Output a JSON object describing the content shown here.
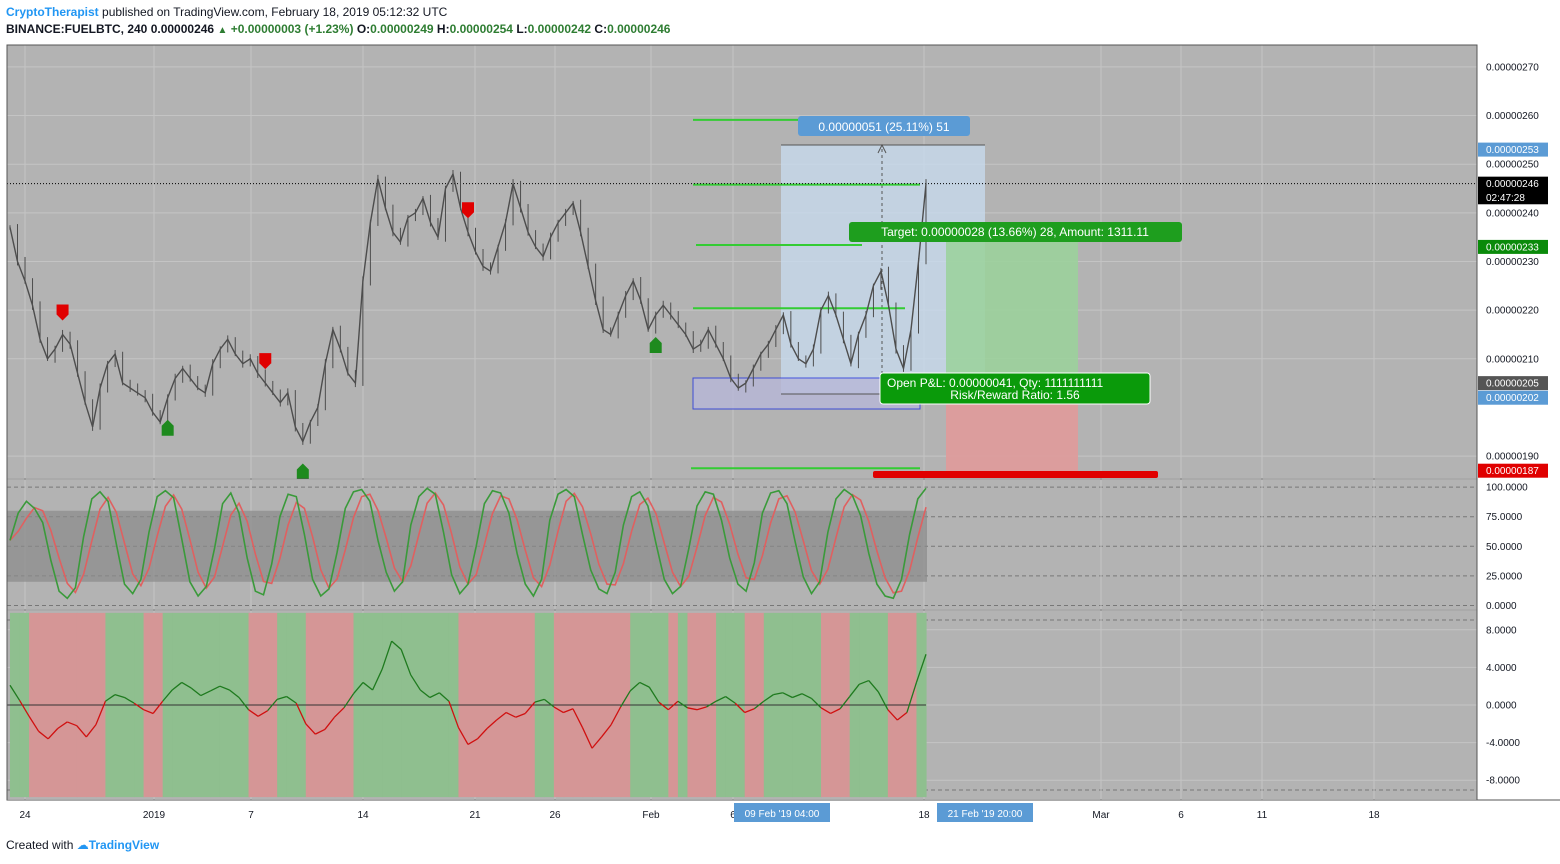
{
  "header": {
    "author": "CryptoTherapist",
    "published_text": " published on TradingView.com, February 18, 2019 05:12:32 UTC",
    "symbol": "BINANCE:FUELBTC, 240",
    "last_price": "0.00000246",
    "change": "+0.00000003 (+1.23%)",
    "open_label": "O:",
    "open": "0.00000249",
    "high_label": "H:",
    "high": "0.00000254",
    "low_label": "L:",
    "low": "0.00000242",
    "close_label": "C:",
    "close": "0.00000246"
  },
  "footer": {
    "created_with": "Created with",
    "brand": "TradingView"
  },
  "colors": {
    "pane_bg": "#b3b3b3",
    "candle": "#4d4d4d",
    "up": "#1e8a1e",
    "down": "#e00000",
    "profit_zone": "#9ad29a",
    "loss_zone": "#e09a9a",
    "measure_zone": "#c8dcf0",
    "level": "#33cc33"
  },
  "chart_data": {
    "type": "line",
    "main": {
      "y_ticks": [
        "0.00000270",
        "0.00000260",
        "0.00000250",
        "0.00000240",
        "0.00000230",
        "0.00000220",
        "0.00000210",
        "0.00000190"
      ],
      "ylim": [
        1.855e-06,
        2.745e-06
      ],
      "price_badges": [
        {
          "text": "0.00000253",
          "value": 2.53e-06,
          "color": "#5b9bd5"
        },
        {
          "text": "0.00000246",
          "value": 2.46e-06,
          "color": "#000000"
        },
        {
          "text": "02:47:28",
          "value": 2.432e-06,
          "color": "#000000"
        },
        {
          "text": "0.00000233",
          "value": 2.33e-06,
          "color": "#0a8a0a"
        },
        {
          "text": "0.00000205",
          "value": 2.05e-06,
          "color": "#555555"
        },
        {
          "text": "0.00000202",
          "value": 2.02e-06,
          "color": "#5b9bd5"
        },
        {
          "text": "0.00000187",
          "value": 1.87e-06,
          "color": "#e00000"
        }
      ],
      "current_price": 2.46e-06,
      "close_series": [
        2.37e-06,
        2.3e-06,
        2.26e-06,
        2.21e-06,
        2.14e-06,
        2.1e-06,
        2.12e-06,
        2.15e-06,
        2.13e-06,
        2.07e-06,
        2.01e-06,
        1.96e-06,
        2.04e-06,
        2.09e-06,
        2.11e-06,
        2.05e-06,
        2.04e-06,
        2.03e-06,
        2.02e-06,
        1.99e-06,
        1.97e-06,
        2.02e-06,
        2.06e-06,
        2.08e-06,
        2.06e-06,
        2.04e-06,
        2.03e-06,
        2.09e-06,
        2.12e-06,
        2.14e-06,
        2.11e-06,
        2.09e-06,
        2.1e-06,
        2.07e-06,
        2.05e-06,
        2.03e-06,
        2.01e-06,
        2.03e-06,
        1.96e-06,
        1.93e-06,
        1.97e-06,
        2e-06,
        2.09e-06,
        2.16e-06,
        2.12e-06,
        2.07e-06,
        2.05e-06,
        2.26e-06,
        2.38e-06,
        2.47e-06,
        2.41e-06,
        2.36e-06,
        2.34e-06,
        2.39e-06,
        2.4e-06,
        2.43e-06,
        2.38e-06,
        2.35e-06,
        2.45e-06,
        2.48e-06,
        2.41e-06,
        2.36e-06,
        2.32e-06,
        2.29e-06,
        2.28e-06,
        2.33e-06,
        2.38e-06,
        2.46e-06,
        2.41e-06,
        2.36e-06,
        2.33e-06,
        2.31e-06,
        2.35e-06,
        2.38e-06,
        2.4e-06,
        2.42e-06,
        2.36e-06,
        2.29e-06,
        2.22e-06,
        2.16e-06,
        2.15e-06,
        2.19e-06,
        2.23e-06,
        2.26e-06,
        2.22e-06,
        2.16e-06,
        2.19e-06,
        2.21e-06,
        2.19e-06,
        2.17e-06,
        2.15e-06,
        2.12e-06,
        2.13e-06,
        2.16e-06,
        2.13e-06,
        2.1e-06,
        2.06e-06,
        2.04e-06,
        2.05e-06,
        2.08e-06,
        2.11e-06,
        2.13e-06,
        2.16e-06,
        2.19e-06,
        2.13e-06,
        2.1e-06,
        2.09e-06,
        2.12e-06,
        2.2e-06,
        2.23e-06,
        2.19e-06,
        2.14e-06,
        2.09e-06,
        2.15e-06,
        2.19e-06,
        2.25e-06,
        2.28e-06,
        2.21e-06,
        2.12e-06,
        2.08e-06,
        2.16e-06,
        2.3e-06,
        2.46e-06
      ],
      "signals": [
        {
          "type": "sell",
          "index": 7
        },
        {
          "type": "buy",
          "index": 21
        },
        {
          "type": "sell",
          "index": 34
        },
        {
          "type": "buy",
          "index": 39
        },
        {
          "type": "sell",
          "index": 61
        },
        {
          "type": "buy",
          "index": 86
        }
      ],
      "levels": [
        2.591e-06,
        2.458e-06,
        2.334e-06,
        2.204e-06,
        1.875e-06
      ],
      "annotations": {
        "measure": "0.00000051 (25.11%) 51",
        "target": "Target: 0.00000028 (13.66%) 28, Amount: 1311.11",
        "open_pnl": "Open P&L: 0.00000041, Qty: 1111111111",
        "risk_reward": "Risk/Reward Ratio: 1.56"
      }
    },
    "stoch": {
      "y_ticks": [
        "100.0000",
        "75.0000",
        "50.0000",
        "25.0000",
        "0.0000"
      ],
      "ylim": [
        -3,
        106
      ],
      "band": [
        20,
        80
      ],
      "k": [
        55,
        78,
        88,
        82,
        70,
        38,
        12,
        6,
        15,
        58,
        90,
        96,
        88,
        52,
        18,
        10,
        22,
        62,
        92,
        97,
        91,
        56,
        20,
        8,
        16,
        48,
        86,
        95,
        78,
        40,
        12,
        9,
        35,
        75,
        94,
        92,
        60,
        22,
        8,
        14,
        45,
        82,
        96,
        98,
        88,
        55,
        28,
        12,
        20,
        68,
        92,
        99,
        94,
        62,
        26,
        10,
        18,
        50,
        86,
        97,
        95,
        78,
        44,
        18,
        8,
        22,
        72,
        94,
        98,
        92,
        60,
        30,
        14,
        10,
        28,
        68,
        92,
        96,
        84,
        52,
        22,
        10,
        16,
        48,
        84,
        96,
        94,
        72,
        40,
        18,
        12,
        36,
        78,
        95,
        97,
        86,
        54,
        24,
        10,
        20,
        62,
        90,
        98,
        93,
        76,
        44,
        18,
        8,
        6,
        22,
        60,
        90,
        99
      ]
    },
    "oscillator": {
      "y_ticks": [
        "8.0000",
        "4.0000",
        "0.0000",
        "-4.0000",
        "-8.0000"
      ],
      "ylim": [
        -10,
        10
      ],
      "values": [
        2.1,
        0.5,
        -1.2,
        -2.8,
        -3.6,
        -2.5,
        -1.8,
        -2.2,
        -3.4,
        -2.1,
        0.4,
        1.1,
        0.8,
        0.2,
        -0.5,
        -0.9,
        0.4,
        1.6,
        2.4,
        1.8,
        1.0,
        1.5,
        2.0,
        1.6,
        0.8,
        -0.5,
        -1.2,
        -0.6,
        0.6,
        0.9,
        0.2,
        -2.0,
        -3.1,
        -2.6,
        -1.3,
        -0.3,
        1.2,
        2.4,
        1.6,
        3.8,
        6.8,
        5.9,
        3.2,
        1.6,
        0.8,
        1.3,
        0.4,
        -2.4,
        -4.2,
        -3.6,
        -2.5,
        -1.6,
        -0.8,
        -1.3,
        -0.9,
        0.3,
        0.6,
        -0.2,
        -0.8,
        -0.4,
        -2.4,
        -4.6,
        -3.4,
        -2.1,
        -0.2,
        1.5,
        2.4,
        1.9,
        0.3,
        -0.5,
        0.4,
        -0.3,
        -0.5,
        -0.2,
        0.4,
        0.9,
        0.2,
        -0.8,
        -0.4,
        0.4,
        1.1,
        1.3,
        0.8,
        1.2,
        0.7,
        -0.3,
        -0.9,
        -0.4,
        0.9,
        2.2,
        2.6,
        1.4,
        -0.5,
        -1.6,
        -0.8,
        2.4,
        5.4
      ]
    },
    "x_ticks": [
      {
        "label": "24",
        "x": 25
      },
      {
        "label": "2019",
        "x": 154
      },
      {
        "label": "7",
        "x": 251
      },
      {
        "label": "14",
        "x": 363
      },
      {
        "label": "21",
        "x": 475
      },
      {
        "label": "26",
        "x": 555
      },
      {
        "label": "Feb",
        "x": 651
      },
      {
        "label": "6",
        "x": 733
      },
      {
        "label": "18",
        "x": 924
      },
      {
        "label": "Mar",
        "x": 1101
      },
      {
        "label": "6",
        "x": 1181
      },
      {
        "label": "11",
        "x": 1262
      },
      {
        "label": "18",
        "x": 1374
      }
    ],
    "x_badges": [
      {
        "text": "09 Feb '19   04:00",
        "x": 782
      },
      {
        "text": "21 Feb '19   20:00",
        "x": 985
      }
    ]
  }
}
